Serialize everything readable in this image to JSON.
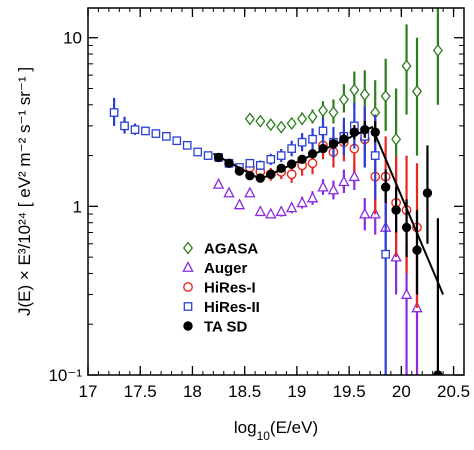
{
  "chart_data": {
    "type": "scatter",
    "xlabel": "log10(E/eV)",
    "ylabel": "J(E) × E³/10²⁴ [ eV² m⁻² s⁻¹ sr⁻¹ ]",
    "xlim": [
      17.0,
      20.6
    ],
    "ylim": [
      0.1,
      15
    ],
    "yscale": "log",
    "xticks": [
      {
        "v": 17,
        "label": "17"
      },
      {
        "v": 17.5,
        "label": "17.5"
      },
      {
        "v": 18,
        "label": "18"
      },
      {
        "v": 18.5,
        "label": "18.5"
      },
      {
        "v": 19,
        "label": "19"
      },
      {
        "v": 19.5,
        "label": "19.5"
      },
      {
        "v": 20,
        "label": "20"
      },
      {
        "v": 20.5,
        "label": "20.5"
      }
    ],
    "yticks": [
      {
        "v": 0.1,
        "label": "10⁻¹"
      },
      {
        "v": 1,
        "label": "1"
      },
      {
        "v": 10,
        "label": "10"
      }
    ],
    "legend_position": "lower-left",
    "series": [
      {
        "name": "AGASA",
        "marker": "diamond",
        "color": "#2e7d1e",
        "points": [
          {
            "x": 18.55,
            "y": 3.3,
            "lo": 3.1,
            "hi": 3.5
          },
          {
            "x": 18.65,
            "y": 3.2,
            "lo": 3.0,
            "hi": 3.4
          },
          {
            "x": 18.75,
            "y": 3.05,
            "lo": 2.85,
            "hi": 3.25
          },
          {
            "x": 18.85,
            "y": 2.95,
            "lo": 2.75,
            "hi": 3.15
          },
          {
            "x": 18.95,
            "y": 3.1,
            "lo": 2.9,
            "hi": 3.35
          },
          {
            "x": 19.05,
            "y": 3.3,
            "lo": 3.05,
            "hi": 3.6
          },
          {
            "x": 19.15,
            "y": 3.4,
            "lo": 3.1,
            "hi": 3.75
          },
          {
            "x": 19.25,
            "y": 3.7,
            "lo": 3.3,
            "hi": 4.2
          },
          {
            "x": 19.35,
            "y": 3.6,
            "lo": 3.1,
            "hi": 4.3
          },
          {
            "x": 19.45,
            "y": 4.3,
            "lo": 3.6,
            "hi": 5.3
          },
          {
            "x": 19.55,
            "y": 4.9,
            "lo": 3.9,
            "hi": 6.3
          },
          {
            "x": 19.65,
            "y": 4.6,
            "lo": 3.4,
            "hi": 6.4
          },
          {
            "x": 19.75,
            "y": 3.6,
            "lo": 2.4,
            "hi": 5.6
          },
          {
            "x": 19.85,
            "y": 4.5,
            "lo": 2.8,
            "hi": 7.5
          },
          {
            "x": 19.95,
            "y": 2.5,
            "lo": 1.2,
            "hi": 5.0
          },
          {
            "x": 20.05,
            "y": 6.8,
            "lo": 3.5,
            "hi": 12.0
          },
          {
            "x": 20.15,
            "y": 4.8,
            "lo": 2.0,
            "hi": 10.0
          },
          {
            "x": 20.35,
            "y": 8.4,
            "lo": 4.0,
            "hi": 15.0
          }
        ]
      },
      {
        "name": "Auger",
        "marker": "triangle",
        "color": "#8a2be2",
        "points": [
          {
            "x": 18.25,
            "y": 1.35,
            "lo": 1.28,
            "hi": 1.42
          },
          {
            "x": 18.35,
            "y": 1.2,
            "lo": 1.14,
            "hi": 1.27
          },
          {
            "x": 18.45,
            "y": 1.02,
            "lo": 0.97,
            "hi": 1.08
          },
          {
            "x": 18.55,
            "y": 1.2,
            "lo": 1.14,
            "hi": 1.26
          },
          {
            "x": 18.65,
            "y": 0.93,
            "lo": 0.88,
            "hi": 0.98
          },
          {
            "x": 18.75,
            "y": 0.9,
            "lo": 0.85,
            "hi": 0.95
          },
          {
            "x": 18.85,
            "y": 0.93,
            "lo": 0.87,
            "hi": 0.99
          },
          {
            "x": 18.95,
            "y": 0.98,
            "lo": 0.91,
            "hi": 1.05
          },
          {
            "x": 19.05,
            "y": 1.05,
            "lo": 0.97,
            "hi": 1.14
          },
          {
            "x": 19.15,
            "y": 1.12,
            "lo": 1.02,
            "hi": 1.23
          },
          {
            "x": 19.25,
            "y": 1.3,
            "lo": 1.17,
            "hi": 1.45
          },
          {
            "x": 19.35,
            "y": 1.25,
            "lo": 1.1,
            "hi": 1.42
          },
          {
            "x": 19.45,
            "y": 1.4,
            "lo": 1.2,
            "hi": 1.65
          },
          {
            "x": 19.55,
            "y": 1.5,
            "lo": 1.25,
            "hi": 1.8
          },
          {
            "x": 19.65,
            "y": 0.9,
            "lo": 0.72,
            "hi": 1.12
          },
          {
            "x": 19.75,
            "y": 0.9,
            "lo": 0.68,
            "hi": 1.18
          },
          {
            "x": 19.85,
            "y": 0.75,
            "lo": 0.5,
            "hi": 1.1
          },
          {
            "x": 19.95,
            "y": 0.5,
            "lo": 0.3,
            "hi": 0.85
          },
          {
            "x": 20.05,
            "y": 0.3,
            "lo": 0.1,
            "hi": 0.6
          },
          {
            "x": 20.15,
            "y": 0.25,
            "lo": 0.1,
            "hi": 0.55
          }
        ]
      },
      {
        "name": "HiRes-I",
        "marker": "circle-open",
        "color": "#e8281e",
        "points": [
          {
            "x": 18.55,
            "y": 1.7,
            "lo": 1.58,
            "hi": 1.82
          },
          {
            "x": 18.65,
            "y": 1.6,
            "lo": 1.48,
            "hi": 1.73
          },
          {
            "x": 18.75,
            "y": 1.55,
            "lo": 1.42,
            "hi": 1.69
          },
          {
            "x": 18.85,
            "y": 1.6,
            "lo": 1.45,
            "hi": 1.76
          },
          {
            "x": 18.95,
            "y": 1.55,
            "lo": 1.38,
            "hi": 1.74
          },
          {
            "x": 19.05,
            "y": 1.75,
            "lo": 1.52,
            "hi": 2.0
          },
          {
            "x": 19.15,
            "y": 1.8,
            "lo": 1.55,
            "hi": 2.1
          },
          {
            "x": 19.25,
            "y": 2.3,
            "lo": 1.9,
            "hi": 2.75
          },
          {
            "x": 19.35,
            "y": 2.1,
            "lo": 1.7,
            "hi": 2.6
          },
          {
            "x": 19.45,
            "y": 2.4,
            "lo": 1.85,
            "hi": 3.1
          },
          {
            "x": 19.55,
            "y": 2.2,
            "lo": 1.6,
            "hi": 3.0
          },
          {
            "x": 19.65,
            "y": 2.5,
            "lo": 1.7,
            "hi": 3.6
          },
          {
            "x": 19.75,
            "y": 1.5,
            "lo": 0.9,
            "hi": 2.4
          },
          {
            "x": 19.85,
            "y": 1.5,
            "lo": 0.8,
            "hi": 2.6
          },
          {
            "x": 19.95,
            "y": 1.05,
            "lo": 0.5,
            "hi": 2.0
          },
          {
            "x": 20.05,
            "y": 0.95,
            "lo": 0.4,
            "hi": 2.0
          },
          {
            "x": 20.15,
            "y": 0.75,
            "lo": 0.25,
            "hi": 1.8
          }
        ]
      },
      {
        "name": "HiRes-II",
        "marker": "square-open",
        "color": "#2b3fd6",
        "points": [
          {
            "x": 17.25,
            "y": 3.6,
            "lo": 3.0,
            "hi": 4.4
          },
          {
            "x": 17.35,
            "y": 3.0,
            "lo": 2.7,
            "hi": 3.4
          },
          {
            "x": 17.45,
            "y": 2.85,
            "lo": 2.65,
            "hi": 3.1
          },
          {
            "x": 17.55,
            "y": 2.8,
            "lo": 2.65,
            "hi": 2.95
          },
          {
            "x": 17.65,
            "y": 2.7,
            "lo": 2.58,
            "hi": 2.83
          },
          {
            "x": 17.75,
            "y": 2.6,
            "lo": 2.5,
            "hi": 2.72
          },
          {
            "x": 17.85,
            "y": 2.45,
            "lo": 2.36,
            "hi": 2.55
          },
          {
            "x": 17.95,
            "y": 2.3,
            "lo": 2.22,
            "hi": 2.39
          },
          {
            "x": 18.05,
            "y": 2.1,
            "lo": 2.02,
            "hi": 2.18
          },
          {
            "x": 18.15,
            "y": 2.0,
            "lo": 1.93,
            "hi": 2.08
          },
          {
            "x": 18.25,
            "y": 1.95,
            "lo": 1.88,
            "hi": 2.03
          },
          {
            "x": 18.35,
            "y": 1.8,
            "lo": 1.72,
            "hi": 1.88
          },
          {
            "x": 18.45,
            "y": 1.7,
            "lo": 1.62,
            "hi": 1.79
          },
          {
            "x": 18.55,
            "y": 1.8,
            "lo": 1.7,
            "hi": 1.91
          },
          {
            "x": 18.65,
            "y": 1.75,
            "lo": 1.64,
            "hi": 1.87
          },
          {
            "x": 18.75,
            "y": 1.9,
            "lo": 1.76,
            "hi": 2.05
          },
          {
            "x": 18.85,
            "y": 2.0,
            "lo": 1.83,
            "hi": 2.19
          },
          {
            "x": 18.95,
            "y": 2.2,
            "lo": 1.98,
            "hi": 2.45
          },
          {
            "x": 19.05,
            "y": 2.4,
            "lo": 2.12,
            "hi": 2.72
          },
          {
            "x": 19.15,
            "y": 2.5,
            "lo": 2.15,
            "hi": 2.9
          },
          {
            "x": 19.25,
            "y": 2.8,
            "lo": 2.35,
            "hi": 3.35
          },
          {
            "x": 19.35,
            "y": 2.4,
            "lo": 1.95,
            "hi": 2.95
          },
          {
            "x": 19.45,
            "y": 2.6,
            "lo": 2.0,
            "hi": 3.35
          },
          {
            "x": 19.55,
            "y": 3.0,
            "lo": 2.2,
            "hi": 4.1
          },
          {
            "x": 19.65,
            "y": 2.6,
            "lo": 1.7,
            "hi": 3.9
          },
          {
            "x": 19.75,
            "y": 2.0,
            "lo": 1.1,
            "hi": 3.5
          },
          {
            "x": 19.85,
            "y": 0.52,
            "lo": 0.1,
            "hi": 1.5
          }
        ]
      },
      {
        "name": "TA SD",
        "marker": "circle-filled",
        "color": "#000000",
        "points": [
          {
            "x": 18.25,
            "y": 1.95,
            "lo": 1.9,
            "hi": 2.0
          },
          {
            "x": 18.35,
            "y": 1.8,
            "lo": 1.75,
            "hi": 1.85
          },
          {
            "x": 18.45,
            "y": 1.62,
            "lo": 1.57,
            "hi": 1.67
          },
          {
            "x": 18.55,
            "y": 1.52,
            "lo": 1.47,
            "hi": 1.57
          },
          {
            "x": 18.65,
            "y": 1.47,
            "lo": 1.42,
            "hi": 1.52
          },
          {
            "x": 18.75,
            "y": 1.55,
            "lo": 1.5,
            "hi": 1.6
          },
          {
            "x": 18.85,
            "y": 1.68,
            "lo": 1.62,
            "hi": 1.74
          },
          {
            "x": 18.95,
            "y": 1.78,
            "lo": 1.71,
            "hi": 1.85
          },
          {
            "x": 19.05,
            "y": 1.9,
            "lo": 1.82,
            "hi": 1.99
          },
          {
            "x": 19.15,
            "y": 2.05,
            "lo": 1.95,
            "hi": 2.16
          },
          {
            "x": 19.25,
            "y": 2.2,
            "lo": 2.08,
            "hi": 2.33
          },
          {
            "x": 19.35,
            "y": 2.35,
            "lo": 2.2,
            "hi": 2.51
          },
          {
            "x": 19.45,
            "y": 2.5,
            "lo": 2.31,
            "hi": 2.71
          },
          {
            "x": 19.55,
            "y": 2.75,
            "lo": 2.5,
            "hi": 3.03
          },
          {
            "x": 19.65,
            "y": 2.85,
            "lo": 2.55,
            "hi": 3.2
          },
          {
            "x": 19.75,
            "y": 2.75,
            "lo": 2.4,
            "hi": 3.2
          },
          {
            "x": 19.85,
            "y": 1.3,
            "lo": 1.05,
            "hi": 1.65
          },
          {
            "x": 19.95,
            "y": 0.95,
            "lo": 0.7,
            "hi": 1.3
          },
          {
            "x": 20.05,
            "y": 0.75,
            "lo": 0.5,
            "hi": 1.1
          },
          {
            "x": 20.15,
            "y": 0.55,
            "lo": 0.3,
            "hi": 0.95
          },
          {
            "x": 20.25,
            "y": 1.2,
            "lo": 0.6,
            "hi": 2.3
          },
          {
            "x": 20.35,
            "y": 0.1,
            "lo": 0.1,
            "hi": 0.85
          }
        ]
      }
    ],
    "fit_line": {
      "color": "#000000",
      "points": [
        {
          "x": 18.2,
          "y": 2.05
        },
        {
          "x": 18.65,
          "y": 1.45
        },
        {
          "x": 19.72,
          "y": 2.95
        },
        {
          "x": 20.4,
          "y": 0.3
        }
      ]
    }
  }
}
